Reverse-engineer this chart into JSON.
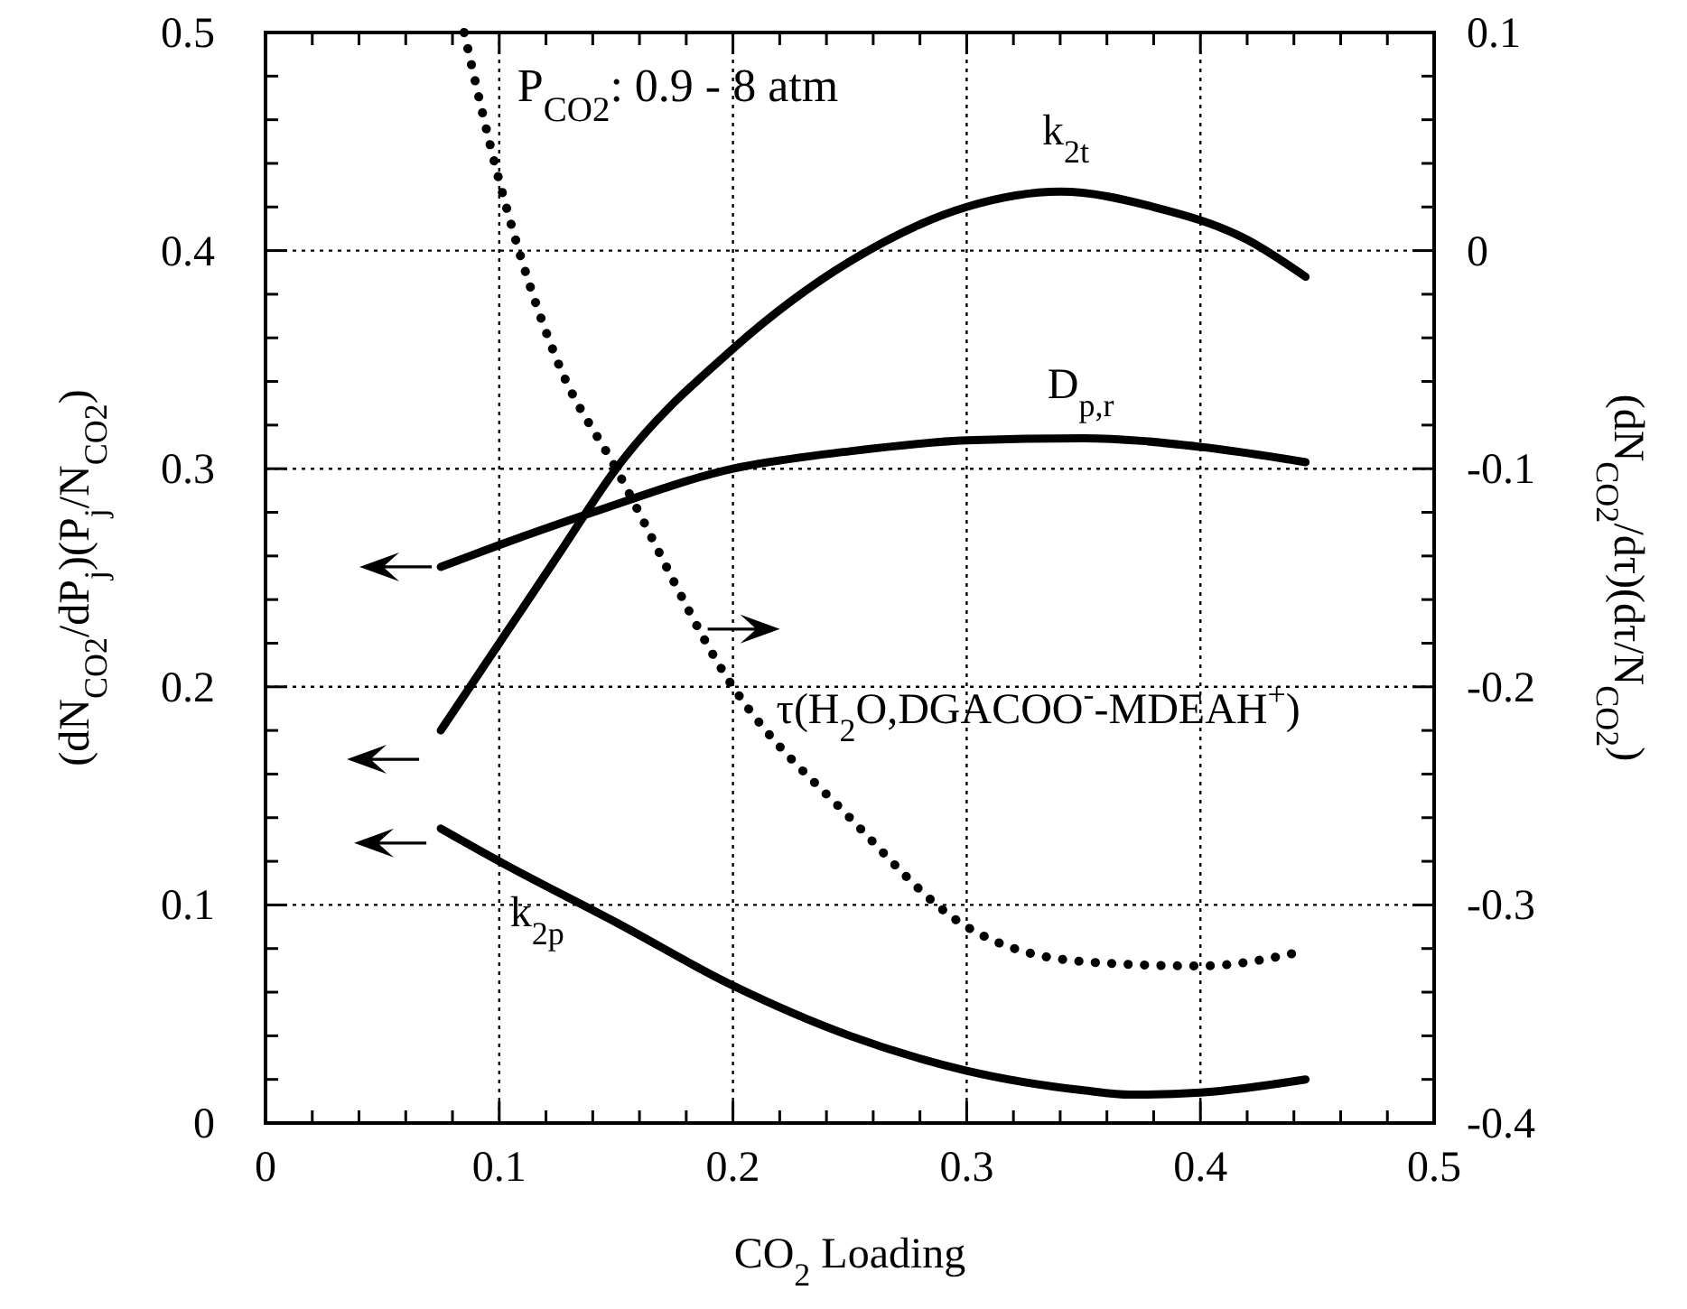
{
  "chart_data": {
    "type": "line",
    "xlabel": "CO$_{2}$ Loading",
    "ylabel": "(dN$_{CO2}$/dP$_{j}$)(P$_{j}$/N$_{CO2}$)",
    "y2label": "(dN$_{CO2}$/dτ)(dτ/N$_{CO2}$)",
    "annotations": [
      "P$_{CO2}$: 0.9 - 8 atm"
    ],
    "xlim": [
      0,
      0.5
    ],
    "xticks": [
      0,
      {
        "value": 0.02,
        "label": null
      },
      {
        "value": 0.04,
        "label": null
      },
      {
        "value": 0.06,
        "label": null
      },
      {
        "value": 0.08,
        "label": null
      },
      0.1,
      {
        "value": 0.12,
        "label": null
      },
      {
        "value": 0.14,
        "label": null
      },
      {
        "value": 0.16,
        "label": null
      },
      {
        "value": 0.18,
        "label": null
      },
      0.2,
      {
        "value": 0.22,
        "label": null
      },
      {
        "value": 0.24,
        "label": null
      },
      {
        "value": 0.26,
        "label": null
      },
      {
        "value": 0.28,
        "label": null
      },
      0.3,
      {
        "value": 0.32,
        "label": null
      },
      {
        "value": 0.34,
        "label": null
      },
      {
        "value": 0.36,
        "label": null
      },
      {
        "value": 0.38,
        "label": null
      },
      0.4,
      {
        "value": 0.42,
        "label": null
      },
      {
        "value": 0.44,
        "label": null
      },
      {
        "value": 0.46,
        "label": null
      },
      {
        "value": 0.48,
        "label": null
      },
      0.5
    ],
    "ylim": [
      0,
      0.5
    ],
    "yticks": [
      0,
      {
        "value": 0.02,
        "label": null
      },
      {
        "value": 0.04,
        "label": null
      },
      {
        "value": 0.06,
        "label": null
      },
      {
        "value": 0.08,
        "label": null
      },
      0.1,
      {
        "value": 0.12,
        "label": null
      },
      {
        "value": 0.14,
        "label": null
      },
      {
        "value": 0.16,
        "label": null
      },
      {
        "value": 0.18,
        "label": null
      },
      0.2,
      {
        "value": 0.22,
        "label": null
      },
      {
        "value": 0.24,
        "label": null
      },
      {
        "value": 0.26,
        "label": null
      },
      {
        "value": 0.28,
        "label": null
      },
      0.3,
      {
        "value": 0.32,
        "label": null
      },
      {
        "value": 0.34,
        "label": null
      },
      {
        "value": 0.36,
        "label": null
      },
      {
        "value": 0.38,
        "label": null
      },
      0.4,
      {
        "value": 0.42,
        "label": null
      },
      {
        "value": 0.44,
        "label": null
      },
      {
        "value": 0.46,
        "label": null
      },
      {
        "value": 0.48,
        "label": null
      },
      0.5
    ],
    "y2lim": [
      -0.4,
      0.1
    ],
    "y2ticks": [
      -0.4,
      {
        "value": -0.38,
        "label": null
      },
      {
        "value": -0.36,
        "label": null
      },
      {
        "value": -0.34,
        "label": null
      },
      {
        "value": -0.32,
        "label": null
      },
      -0.3,
      {
        "value": -0.28,
        "label": null
      },
      {
        "value": -0.26,
        "label": null
      },
      {
        "value": -0.24,
        "label": null
      },
      {
        "value": -0.22,
        "label": null
      },
      -0.2,
      {
        "value": -0.18,
        "label": null
      },
      {
        "value": -0.16,
        "label": null
      },
      {
        "value": -0.14,
        "label": null
      },
      {
        "value": -0.12,
        "label": null
      },
      -0.1,
      {
        "value": -0.08,
        "label": null
      },
      {
        "value": -0.06,
        "label": null
      },
      {
        "value": -0.04,
        "label": null
      },
      {
        "value": -0.02,
        "label": null
      },
      0,
      {
        "value": 0.02,
        "label": null
      },
      {
        "value": 0.04,
        "label": null
      },
      {
        "value": 0.06,
        "label": null
      },
      {
        "value": 0.08,
        "label": null
      },
      0.1
    ],
    "grid": true,
    "series": [
      {
        "name": "k$_{2t}$",
        "color": "#000000",
        "line_style": "solid",
        "x": [
          0.075,
          0.1,
          0.125,
          0.15,
          0.2,
          0.25,
          0.3,
          0.34,
          0.38,
          0.42,
          0.445
        ],
        "values": [
          0.18,
          0.22,
          0.26,
          0.3,
          0.355,
          0.395,
          0.42,
          0.427,
          0.42,
          0.405,
          0.388
        ]
      },
      {
        "name": "D$_{p,r}$",
        "color": "#000000",
        "line_style": "solid",
        "x": [
          0.075,
          0.1,
          0.14,
          0.2,
          0.25,
          0.3,
          0.35,
          0.4,
          0.445
        ],
        "values": [
          0.255,
          0.265,
          0.28,
          0.3,
          0.308,
          0.313,
          0.314,
          0.31,
          0.303
        ]
      },
      {
        "name": "k$_{2p}$",
        "color": "#000000",
        "line_style": "solid",
        "x": [
          0.075,
          0.1,
          0.15,
          0.2,
          0.25,
          0.3,
          0.35,
          0.37,
          0.4,
          0.445
        ],
        "values": [
          0.135,
          0.12,
          0.092,
          0.063,
          0.04,
          0.024,
          0.015,
          0.013,
          0.014,
          0.02
        ]
      },
      {
        "name": "τ(H$_{2}$O,DGACOO$^{-}$-MDEAH$^{+}$)",
        "color": "#000000",
        "line_style": "dotted",
        "axis": "y2",
        "x": [
          0.085,
          0.1,
          0.125,
          0.15,
          0.2,
          0.25,
          0.3,
          0.35,
          0.4,
          0.445
        ],
        "values": [
          0.1,
          0.032,
          -0.051,
          -0.1,
          -0.2,
          -0.26,
          -0.31,
          -0.326,
          -0.328,
          -0.321
        ]
      }
    ]
  }
}
